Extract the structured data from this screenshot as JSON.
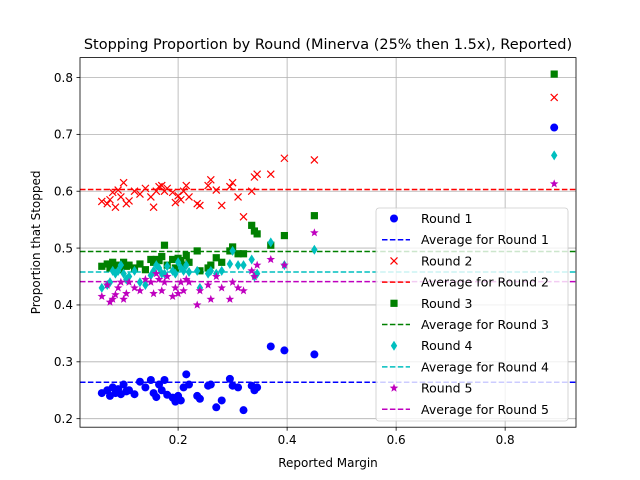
{
  "chart_data": {
    "type": "scatter",
    "title": "Stopping Proportion by Round (Minerva (25% then 1.5x), Reported)",
    "xlabel": "Reported Margin",
    "ylabel": "Proportion that Stopped",
    "xlim": [
      0.02,
      0.93
    ],
    "ylim": [
      0.185,
      0.835
    ],
    "xticks": [
      0.2,
      0.4,
      0.6,
      0.8
    ],
    "xtick_labels": [
      "0.2",
      "0.4",
      "0.6",
      "0.8"
    ],
    "yticks": [
      0.2,
      0.3,
      0.4,
      0.5,
      0.6,
      0.7,
      0.8
    ],
    "ytick_labels": [
      "0.2",
      "0.3",
      "0.4",
      "0.5",
      "0.6",
      "0.7",
      "0.8"
    ],
    "grid": true,
    "legend_position": "bottom-right",
    "x": [
      0.06,
      0.07,
      0.075,
      0.08,
      0.085,
      0.09,
      0.095,
      0.1,
      0.105,
      0.11,
      0.12,
      0.13,
      0.14,
      0.15,
      0.155,
      0.16,
      0.165,
      0.17,
      0.175,
      0.18,
      0.19,
      0.195,
      0.2,
      0.205,
      0.21,
      0.215,
      0.22,
      0.235,
      0.24,
      0.255,
      0.26,
      0.27,
      0.28,
      0.295,
      0.3,
      0.31,
      0.32,
      0.335,
      0.34,
      0.345,
      0.37,
      0.395,
      0.45,
      0.89
    ],
    "series": [
      {
        "name": "Round 1",
        "marker": "circle",
        "color": "#0000ff",
        "y": [
          0.245,
          0.25,
          0.24,
          0.255,
          0.245,
          0.252,
          0.243,
          0.26,
          0.248,
          0.25,
          0.243,
          0.265,
          0.255,
          0.268,
          0.245,
          0.238,
          0.26,
          0.25,
          0.268,
          0.242,
          0.237,
          0.23,
          0.24,
          0.232,
          0.255,
          0.278,
          0.26,
          0.24,
          0.235,
          0.258,
          0.26,
          0.22,
          0.232,
          0.27,
          0.258,
          0.255,
          0.215,
          0.258,
          0.25,
          0.255,
          0.327,
          0.32,
          0.313,
          0.712
        ],
        "average": 0.264,
        "average_name": "Average for Round 1"
      },
      {
        "name": "Round 2",
        "marker": "x",
        "color": "#ff0000",
        "y": [
          0.582,
          0.578,
          0.585,
          0.598,
          0.572,
          0.602,
          0.59,
          0.615,
          0.578,
          0.583,
          0.6,
          0.595,
          0.605,
          0.59,
          0.572,
          0.6,
          0.608,
          0.61,
          0.6,
          0.605,
          0.598,
          0.58,
          0.592,
          0.585,
          0.6,
          0.61,
          0.59,
          0.578,
          0.575,
          0.61,
          0.62,
          0.602,
          0.575,
          0.608,
          0.615,
          0.59,
          0.555,
          0.6,
          0.625,
          0.63,
          0.63,
          0.658,
          0.655,
          0.765
        ],
        "average": 0.603,
        "average_name": "Average for Round 2"
      },
      {
        "name": "Round 3",
        "marker": "square",
        "color": "#008000",
        "y": [
          0.468,
          0.472,
          0.465,
          0.475,
          0.468,
          0.47,
          0.462,
          0.475,
          0.468,
          0.47,
          0.465,
          0.472,
          0.462,
          0.48,
          0.475,
          0.48,
          0.478,
          0.485,
          0.505,
          0.47,
          0.48,
          0.465,
          0.482,
          0.478,
          0.47,
          0.487,
          0.475,
          0.495,
          0.46,
          0.465,
          0.47,
          0.483,
          0.475,
          0.495,
          0.502,
          0.49,
          0.49,
          0.54,
          0.53,
          0.525,
          0.505,
          0.522,
          0.557,
          0.806
        ],
        "average": 0.494,
        "average_name": "Average for Round 3"
      },
      {
        "name": "Round 4",
        "marker": "diamond",
        "color": "#00bfbf",
        "y": [
          0.43,
          0.435,
          0.44,
          0.46,
          0.455,
          0.46,
          0.47,
          0.455,
          0.445,
          0.45,
          0.46,
          0.44,
          0.435,
          0.452,
          0.46,
          0.47,
          0.465,
          0.455,
          0.455,
          0.468,
          0.46,
          0.455,
          0.475,
          0.465,
          0.46,
          0.47,
          0.458,
          0.46,
          0.43,
          0.455,
          0.46,
          0.455,
          0.46,
          0.472,
          0.495,
          0.47,
          0.47,
          0.48,
          0.45,
          0.455,
          0.51,
          0.47,
          0.497,
          0.663
        ],
        "average": 0.458,
        "average_name": "Average for Round 4"
      },
      {
        "name": "Round 5",
        "marker": "star",
        "color": "#bf00bf",
        "y": [
          0.415,
          0.435,
          0.405,
          0.41,
          0.418,
          0.43,
          0.44,
          0.41,
          0.42,
          0.44,
          0.43,
          0.425,
          0.445,
          0.44,
          0.42,
          0.455,
          0.445,
          0.425,
          0.44,
          0.45,
          0.415,
          0.43,
          0.42,
          0.44,
          0.425,
          0.445,
          0.44,
          0.4,
          0.425,
          0.435,
          0.41,
          0.45,
          0.43,
          0.41,
          0.44,
          0.43,
          0.425,
          0.46,
          0.45,
          0.47,
          0.48,
          0.47,
          0.527,
          0.613
        ],
        "average": 0.441,
        "average_name": "Average for Round 5"
      }
    ]
  }
}
